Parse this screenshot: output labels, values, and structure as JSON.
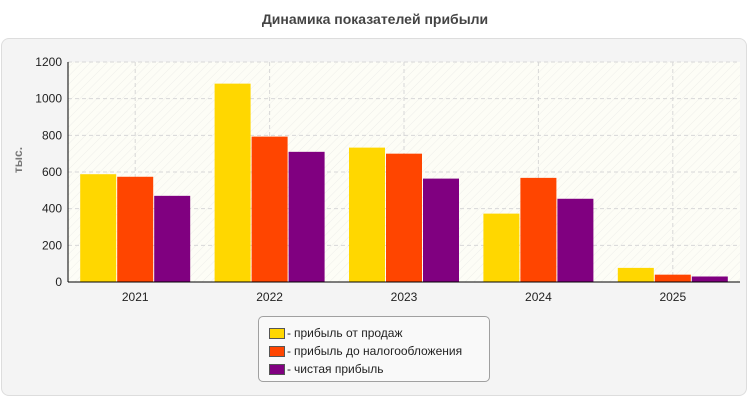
{
  "chart_data": {
    "type": "bar",
    "title": "Динамика показателей прибыли",
    "xlabel": "",
    "ylabel": "тыс.",
    "categories": [
      "2021",
      "2022",
      "2023",
      "2024",
      "2025"
    ],
    "ylim": [
      0,
      1200
    ],
    "yticks": [
      0,
      200,
      400,
      600,
      800,
      1000,
      1200
    ],
    "grid": true,
    "legend_position": "bottom-center",
    "series": [
      {
        "name": "прибыль от продаж",
        "color": "#ffd700",
        "values": [
          588,
          1082,
          733,
          373,
          77
        ]
      },
      {
        "name": "прибыль до налогообложения",
        "color": "#ff4500",
        "values": [
          574,
          793,
          700,
          568,
          40
        ]
      },
      {
        "name": "чистая прибыль",
        "color": "#800080",
        "values": [
          470,
          710,
          564,
          454,
          30
        ]
      }
    ]
  },
  "legend": {
    "prefix": "-"
  }
}
